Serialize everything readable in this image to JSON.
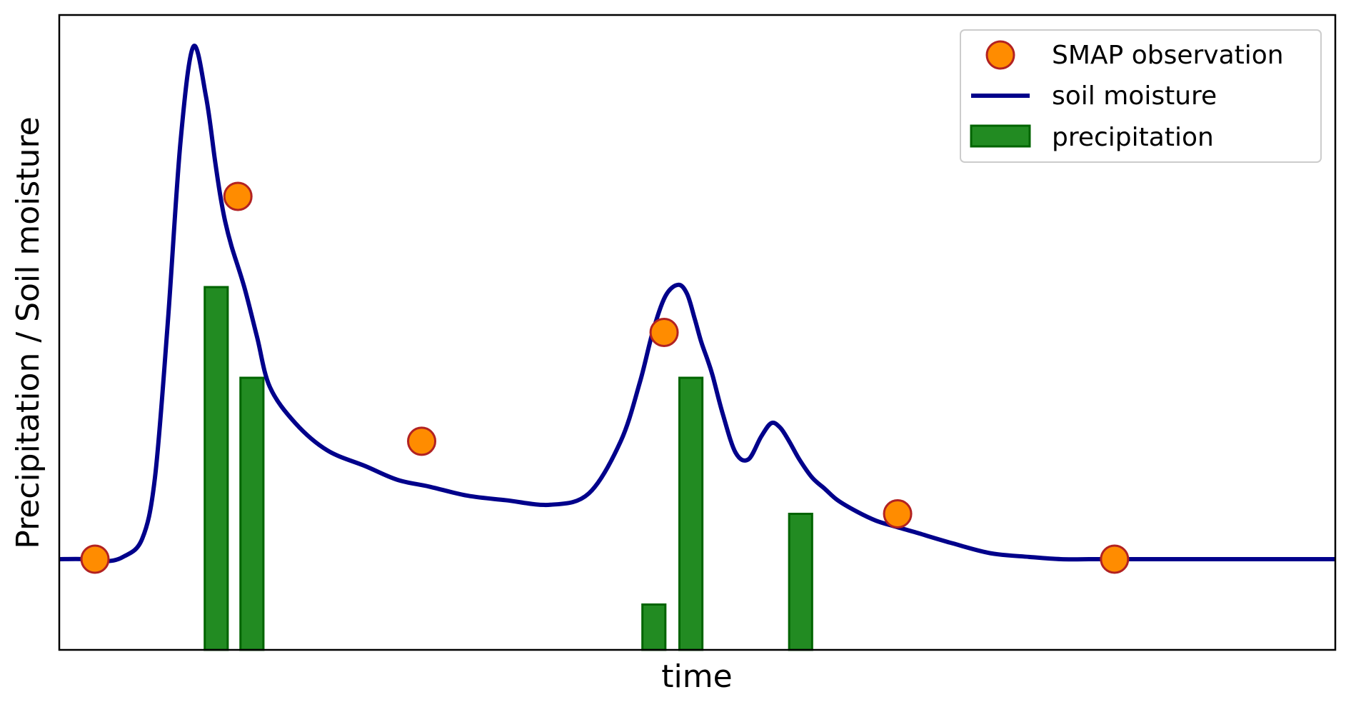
{
  "chart_data": {
    "type": "line",
    "title": "",
    "xlabel": "time",
    "ylabel": "Precipitation / Soil moisture",
    "xlim": [
      0,
      100
    ],
    "ylim": [
      0,
      14
    ],
    "grid": false,
    "legend_position": "top-right",
    "legend": [
      {
        "label": "SMAP observation",
        "kind": "marker"
      },
      {
        "label": "soil moisture",
        "kind": "line"
      },
      {
        "label": "precipitation",
        "kind": "bar"
      }
    ],
    "series": [
      {
        "name": "soil moisture",
        "type": "line",
        "color": "#00008b",
        "x": [
          0,
          2.0,
          3.5,
          5.0,
          6.5,
          7.5,
          8.5,
          9.5,
          10.5,
          11.5,
          12.2,
          12.6,
          13.0,
          13.5,
          14.5,
          15.5,
          16.5,
          18.5,
          21.0,
          24.0,
          26.5,
          29.0,
          32.0,
          35.0,
          38.5,
          41.5,
          44.0,
          45.5,
          46.5,
          47.5,
          48.5,
          49.2,
          49.8,
          50.3,
          50.8,
          51.2,
          52.0,
          53.0,
          54.0,
          55.0,
          55.8,
          56.5,
          57.2,
          58.0,
          59.0,
          60.0,
          61.0,
          62.5,
          64.0,
          65.5,
          67.0,
          70.0,
          73.0,
          76.0,
          78.5,
          81.0,
          83.0,
          86.0,
          90.0,
          95.0,
          100.0
        ],
        "y": [
          2.0,
          2.0,
          1.95,
          2.05,
          2.45,
          3.8,
          7.2,
          11.2,
          13.3,
          12.2,
          10.8,
          10.05,
          9.45,
          8.9,
          8.0,
          6.9,
          5.8,
          5.0,
          4.4,
          4.05,
          3.75,
          3.6,
          3.4,
          3.3,
          3.2,
          3.45,
          4.6,
          5.9,
          7.0,
          7.8,
          8.05,
          7.85,
          7.3,
          6.8,
          6.4,
          6.05,
          5.2,
          4.35,
          4.2,
          4.7,
          5.0,
          4.9,
          4.6,
          4.2,
          3.8,
          3.55,
          3.3,
          3.05,
          2.85,
          2.72,
          2.6,
          2.35,
          2.13,
          2.05,
          2.0,
          2.0,
          2.0,
          2.0,
          2.0,
          2.0,
          2.0
        ]
      },
      {
        "name": "SMAP observation",
        "type": "scatter",
        "color": "#ff8c00",
        "edge_color": "#b22222",
        "x": [
          2.8,
          14.0,
          28.4,
          47.4,
          65.7,
          82.7
        ],
        "y": [
          2.0,
          10.0,
          4.6,
          7.0,
          3.0,
          2.0
        ]
      },
      {
        "name": "precipitation",
        "type": "bar",
        "color": "#228b22",
        "edge_color": "#006400",
        "x": [
          11.4,
          14.2,
          45.7,
          48.6,
          57.2
        ],
        "width": 1.8,
        "values": [
          8.0,
          6.0,
          1.0,
          6.0,
          3.0
        ]
      }
    ]
  }
}
